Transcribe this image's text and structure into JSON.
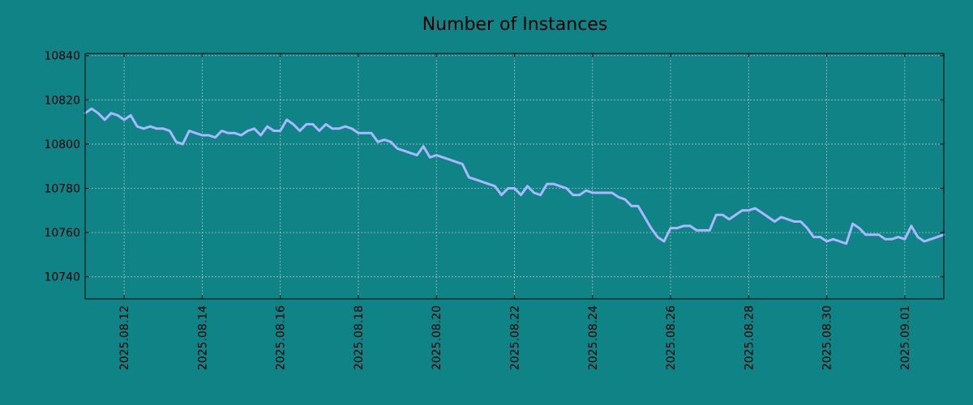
{
  "chart_data": {
    "type": "line",
    "title": "Number of Instances",
    "xlabel": "",
    "ylabel": "",
    "grid": true,
    "background": "#108386",
    "line_color": "#a9b8ff",
    "x_range": [
      "2025-08-11",
      "2025-09-02"
    ],
    "ylim": [
      10730,
      10841
    ],
    "y_ticks": [
      10740,
      10760,
      10780,
      10800,
      10820,
      10840
    ],
    "x_ticks": [
      "2025.08.12",
      "2025.08.14",
      "2025.08.16",
      "2025.08.18",
      "2025.08.20",
      "2025.08.22",
      "2025.08.24",
      "2025.08.26",
      "2025.08.28",
      "2025.08.30",
      "2025.09.01"
    ],
    "series": [
      {
        "x": [
          "2025-08-11 00:00",
          "2025-08-11 04:00",
          "2025-08-11 08:00",
          "2025-08-11 12:00",
          "2025-08-11 16:00",
          "2025-08-11 20:00",
          "2025-08-12 00:00",
          "2025-08-12 04:00",
          "2025-08-12 08:00",
          "2025-08-12 12:00",
          "2025-08-12 16:00",
          "2025-08-12 20:00",
          "2025-08-13 00:00",
          "2025-08-13 04:00",
          "2025-08-13 08:00",
          "2025-08-13 12:00",
          "2025-08-13 16:00",
          "2025-08-13 20:00",
          "2025-08-14 00:00",
          "2025-08-14 04:00",
          "2025-08-14 08:00",
          "2025-08-14 12:00",
          "2025-08-14 16:00",
          "2025-08-14 20:00",
          "2025-08-15 00:00",
          "2025-08-15 04:00",
          "2025-08-15 08:00",
          "2025-08-15 12:00",
          "2025-08-15 16:00",
          "2025-08-15 20:00",
          "2025-08-16 00:00",
          "2025-08-16 04:00",
          "2025-08-16 08:00",
          "2025-08-16 12:00",
          "2025-08-16 16:00",
          "2025-08-16 20:00",
          "2025-08-17 00:00",
          "2025-08-17 04:00",
          "2025-08-17 08:00",
          "2025-08-17 12:00",
          "2025-08-17 16:00",
          "2025-08-17 20:00",
          "2025-08-18 00:00",
          "2025-08-18 04:00",
          "2025-08-18 08:00",
          "2025-08-18 12:00",
          "2025-08-18 16:00",
          "2025-08-18 20:00",
          "2025-08-19 00:00",
          "2025-08-19 04:00",
          "2025-08-19 08:00",
          "2025-08-19 12:00",
          "2025-08-19 16:00",
          "2025-08-19 20:00",
          "2025-08-20 00:00",
          "2025-08-20 04:00",
          "2025-08-20 08:00",
          "2025-08-20 12:00",
          "2025-08-20 16:00",
          "2025-08-20 20:00",
          "2025-08-21 00:00",
          "2025-08-21 04:00",
          "2025-08-21 08:00",
          "2025-08-21 12:00",
          "2025-08-21 16:00",
          "2025-08-21 20:00",
          "2025-08-22 00:00",
          "2025-08-22 04:00",
          "2025-08-22 08:00",
          "2025-08-22 12:00",
          "2025-08-22 16:00",
          "2025-08-22 20:00",
          "2025-08-23 00:00",
          "2025-08-23 04:00",
          "2025-08-23 08:00",
          "2025-08-23 12:00",
          "2025-08-23 16:00",
          "2025-08-23 20:00",
          "2025-08-24 00:00",
          "2025-08-24 04:00",
          "2025-08-24 08:00",
          "2025-08-24 12:00",
          "2025-08-24 16:00",
          "2025-08-24 20:00",
          "2025-08-25 00:00",
          "2025-08-25 04:00",
          "2025-08-25 08:00",
          "2025-08-25 12:00",
          "2025-08-25 16:00",
          "2025-08-25 20:00",
          "2025-08-26 00:00",
          "2025-08-26 04:00",
          "2025-08-26 08:00",
          "2025-08-26 12:00",
          "2025-08-26 16:00",
          "2025-08-26 20:00",
          "2025-08-27 00:00",
          "2025-08-27 04:00",
          "2025-08-27 08:00",
          "2025-08-27 12:00",
          "2025-08-27 16:00",
          "2025-08-27 20:00",
          "2025-08-28 00:00",
          "2025-08-28 04:00",
          "2025-08-28 08:00",
          "2025-08-28 12:00",
          "2025-08-28 16:00",
          "2025-08-28 20:00",
          "2025-08-29 00:00",
          "2025-08-29 04:00",
          "2025-08-29 08:00",
          "2025-08-29 12:00",
          "2025-08-29 16:00",
          "2025-08-29 20:00",
          "2025-08-30 00:00",
          "2025-08-30 04:00",
          "2025-08-30 08:00",
          "2025-08-30 12:00",
          "2025-08-30 16:00",
          "2025-08-30 20:00",
          "2025-08-31 00:00",
          "2025-08-31 04:00",
          "2025-08-31 08:00",
          "2025-08-31 12:00",
          "2025-08-31 16:00",
          "2025-08-31 20:00",
          "2025-09-01 00:00",
          "2025-09-01 04:00",
          "2025-09-01 08:00",
          "2025-09-01 12:00",
          "2025-09-01 16:00",
          "2025-09-01 20:00",
          "2025-09-02 00:00"
        ],
        "y": [
          10814,
          10816,
          10814,
          10811,
          10814,
          10813,
          10811,
          10813,
          10808,
          10807,
          10808,
          10807,
          10807,
          10806,
          10801,
          10800,
          10806,
          10805,
          10804,
          10804,
          10803,
          10806,
          10805,
          10805,
          10804,
          10806,
          10807,
          10804,
          10808,
          10806,
          10806,
          10811,
          10809,
          10806,
          10809,
          10809,
          10806,
          10809,
          10807,
          10807,
          10808,
          10807,
          10805,
          10805,
          10805,
          10801,
          10802,
          10801,
          10798,
          10797,
          10796,
          10795,
          10799,
          10794,
          10795,
          10794,
          10793,
          10792,
          10791,
          10785,
          10784,
          10783,
          10782,
          10781,
          10777,
          10780,
          10780,
          10777,
          10781,
          10778,
          10777,
          10782,
          10782,
          10781,
          10780,
          10777,
          10777,
          10779,
          10778,
          10778,
          10778,
          10778,
          10776,
          10775,
          10772,
          10772,
          10767,
          10762,
          10758,
          10756,
          10762,
          10762,
          10763,
          10763,
          10761,
          10761,
          10761,
          10768,
          10768,
          10766,
          10768,
          10770,
          10770,
          10771,
          10769,
          10767,
          10765,
          10767,
          10766,
          10765,
          10765,
          10762,
          10758,
          10758,
          10756,
          10757,
          10756,
          10755,
          10764,
          10762,
          10759,
          10759,
          10759,
          10757,
          10757,
          10758,
          10757,
          10763,
          10758,
          10756,
          10757,
          10758,
          10759
        ]
      }
    ]
  }
}
